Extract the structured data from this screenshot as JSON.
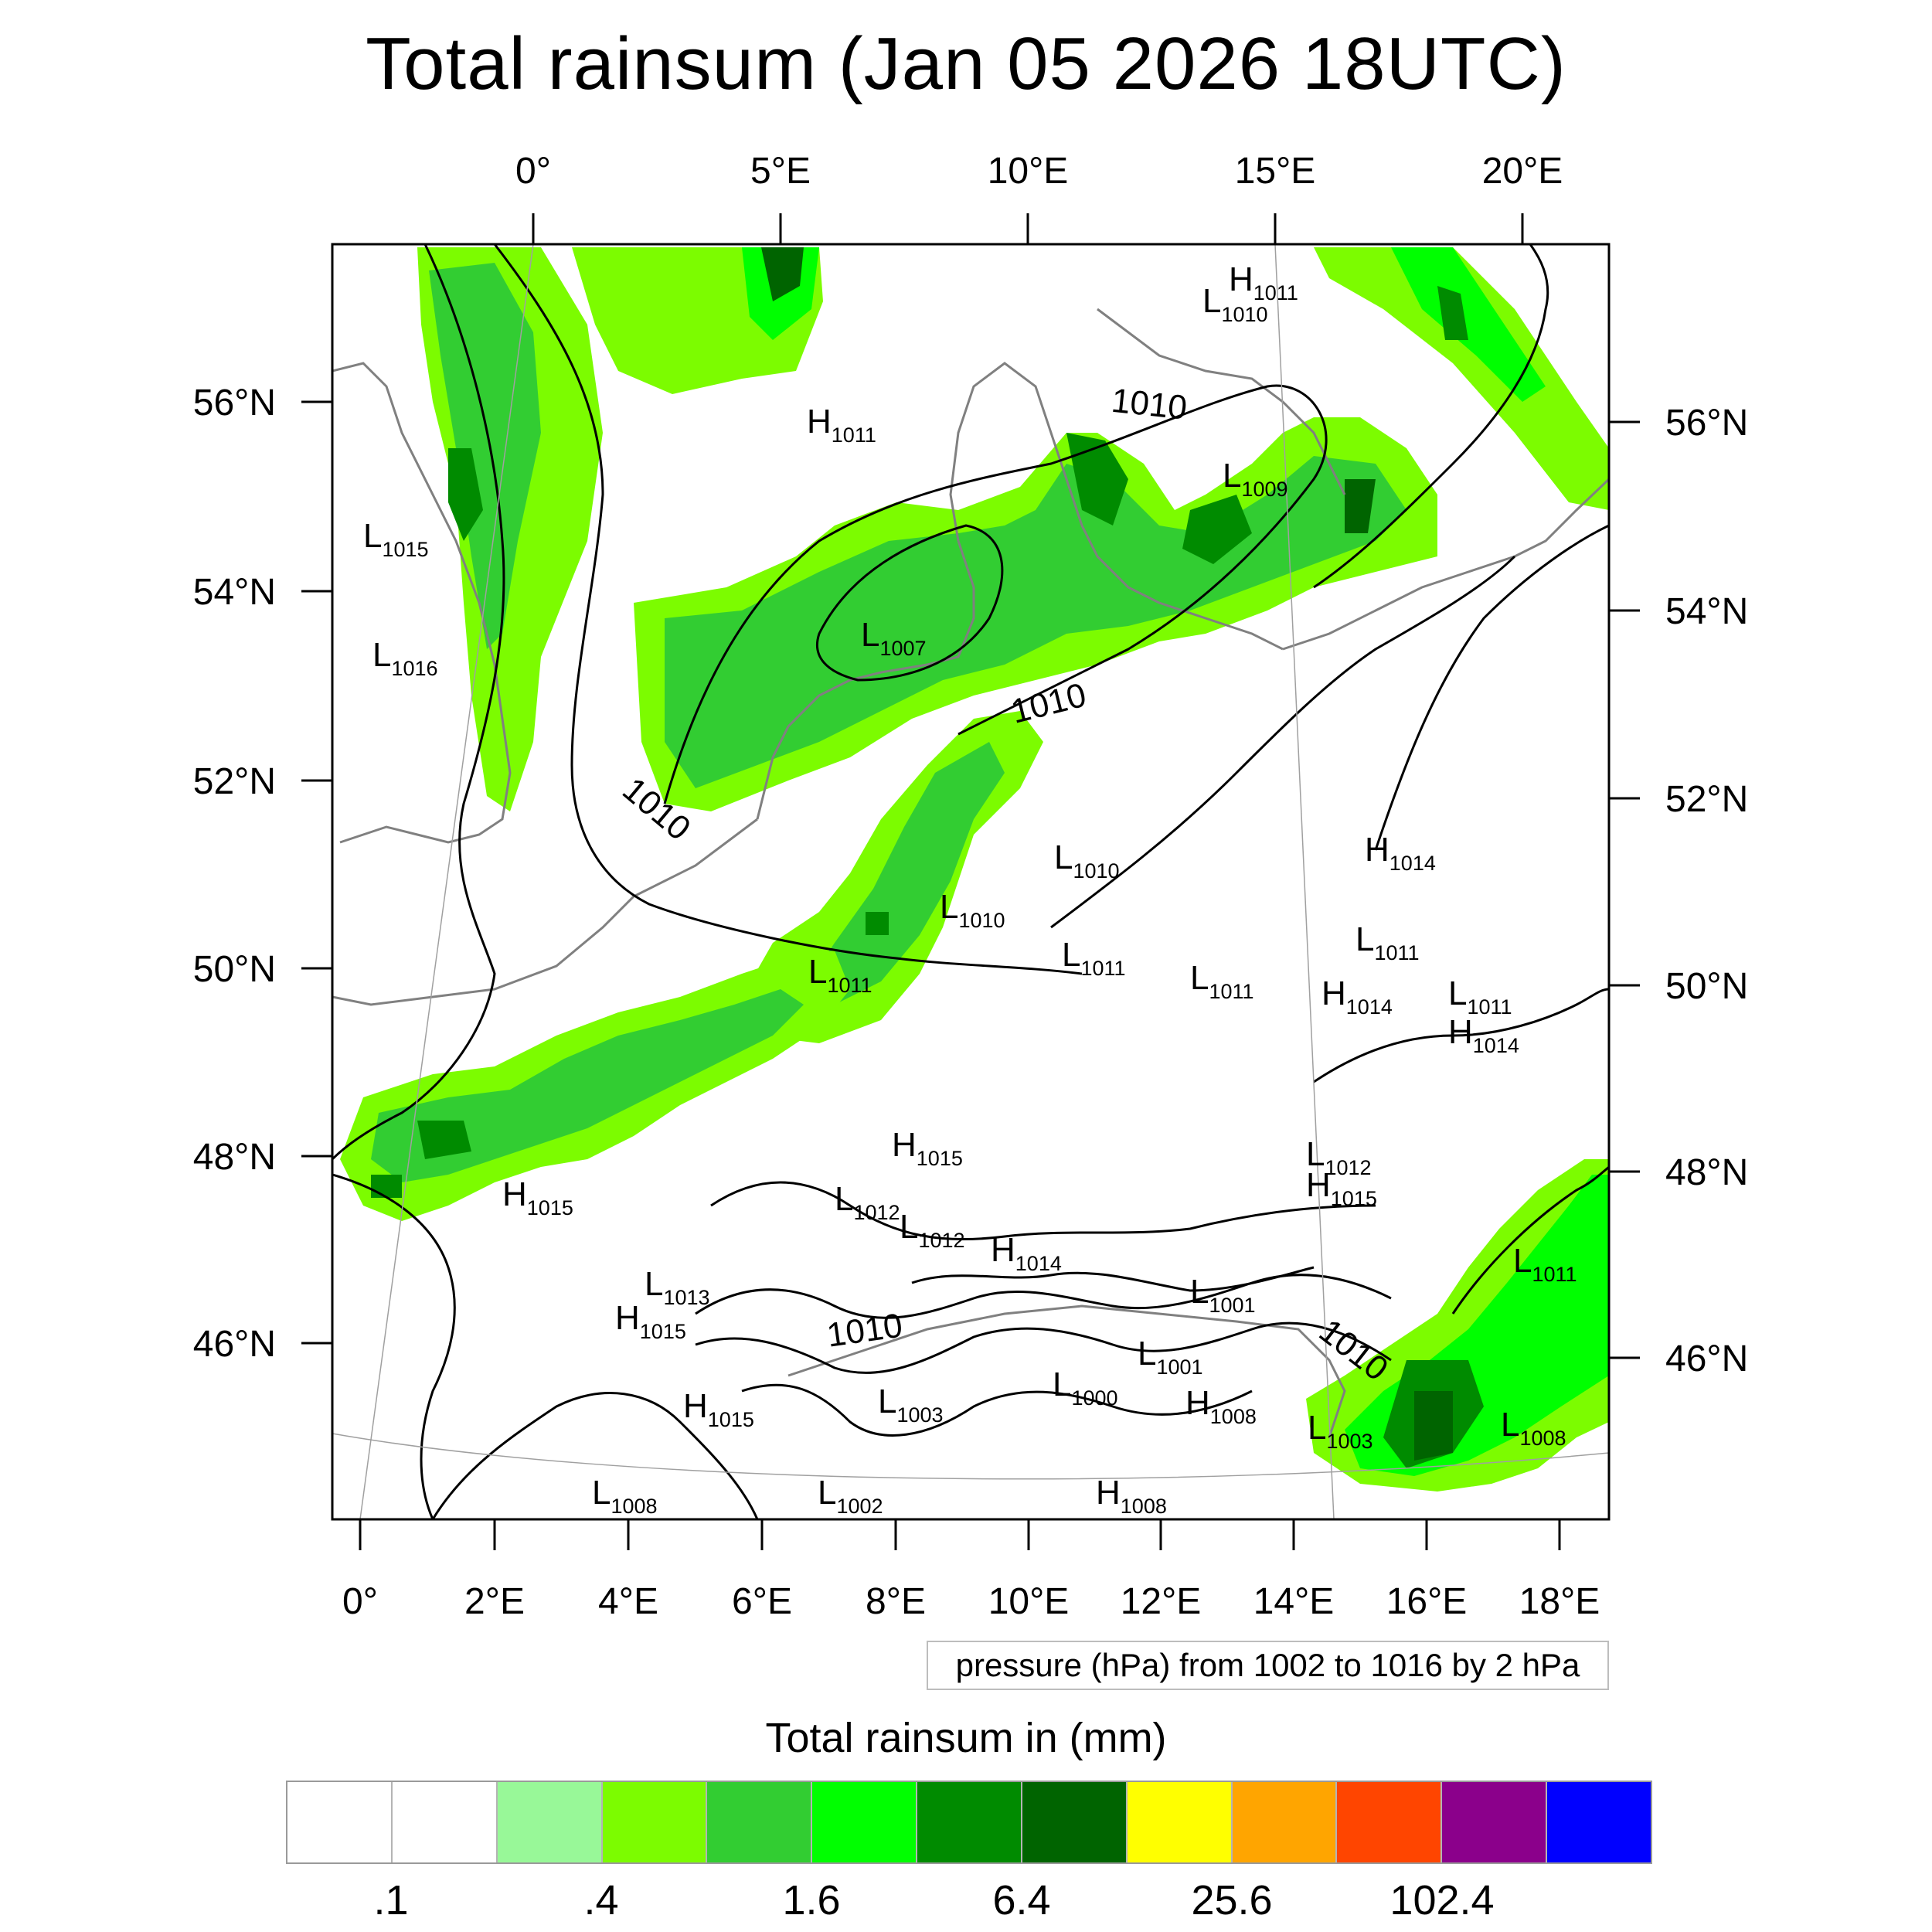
{
  "title": "Total rainsum (Jan 05 2026 18UTC)",
  "axes": {
    "top_lon": [
      "0°",
      "5°E",
      "10°E",
      "15°E",
      "20°E"
    ],
    "bottom_lon": [
      "0°",
      "2°E",
      "4°E",
      "6°E",
      "8°E",
      "10°E",
      "12°E",
      "14°E",
      "16°E",
      "18°E"
    ],
    "left_lat": [
      "56°N",
      "54°N",
      "52°N",
      "50°N",
      "48°N",
      "46°N"
    ],
    "right_lat": [
      "56°N",
      "54°N",
      "52°N",
      "50°N",
      "48°N",
      "46°N"
    ]
  },
  "pressure_systems": [
    {
      "type": "H",
      "value": "1011"
    },
    {
      "type": "L",
      "value": "1010"
    },
    {
      "type": "H",
      "value": "1011"
    },
    {
      "type": "L",
      "value": "1009"
    },
    {
      "type": "L",
      "value": "1015"
    },
    {
      "type": "L",
      "value": "1016"
    },
    {
      "type": "L",
      "value": "1007"
    },
    {
      "type": "L",
      "value": "1010"
    },
    {
      "type": "L",
      "value": "1010"
    },
    {
      "type": "L",
      "value": "1011"
    },
    {
      "type": "L",
      "value": "1011"
    },
    {
      "type": "L",
      "value": "1011"
    },
    {
      "type": "H",
      "value": "1014"
    },
    {
      "type": "L",
      "value": "1011"
    },
    {
      "type": "H",
      "value": "1014"
    },
    {
      "type": "L",
      "value": "1011"
    },
    {
      "type": "H",
      "value": "1014"
    },
    {
      "type": "H",
      "value": "1015"
    },
    {
      "type": "H",
      "value": "1015"
    },
    {
      "type": "L",
      "value": "1012"
    },
    {
      "type": "L",
      "value": "1012"
    },
    {
      "type": "H",
      "value": "1014"
    },
    {
      "type": "L",
      "value": "1013"
    },
    {
      "type": "H",
      "value": "1015"
    },
    {
      "type": "L",
      "value": "1001"
    },
    {
      "type": "L",
      "value": "1001"
    },
    {
      "type": "L",
      "value": "1000"
    },
    {
      "type": "L",
      "value": "1003"
    },
    {
      "type": "H",
      "value": "1015"
    },
    {
      "type": "L",
      "value": "1012"
    },
    {
      "type": "H",
      "value": "1015"
    },
    {
      "type": "L",
      "value": "1011"
    },
    {
      "type": "L",
      "value": "1003"
    },
    {
      "type": "L",
      "value": "1008"
    },
    {
      "type": "L",
      "value": "1008"
    },
    {
      "type": "L",
      "value": "1002"
    },
    {
      "type": "H",
      "value": "1008"
    },
    {
      "type": "H",
      "value": "1008"
    }
  ],
  "contour_labels": [
    "1010",
    "1010",
    "1010",
    "1010",
    "1010"
  ],
  "info_box": "pressure (hPa) from 1002 to 1016 by 2 hPa",
  "colorbar": {
    "title": "Total rainsum in (mm)",
    "colors": [
      "#ffffff",
      "#ffffff",
      "#98f898",
      "#7cfc00",
      "#32cd32",
      "#00ff00",
      "#008b00",
      "#006400",
      "#ffff00",
      "#ffa500",
      "#ff4500",
      "#8b008b",
      "#0000ff"
    ],
    "labels": [
      ".1",
      ".4",
      "1.6",
      "6.4",
      "25.6",
      "102.4"
    ]
  },
  "colors": {
    "light_green": "#98f898",
    "lawn_green": "#7cfc00",
    "lime_green": "#32cd32",
    "green": "#00ff00",
    "dark_green": "#008b00",
    "darker_green": "#006400",
    "coast_grey": "#808080"
  }
}
